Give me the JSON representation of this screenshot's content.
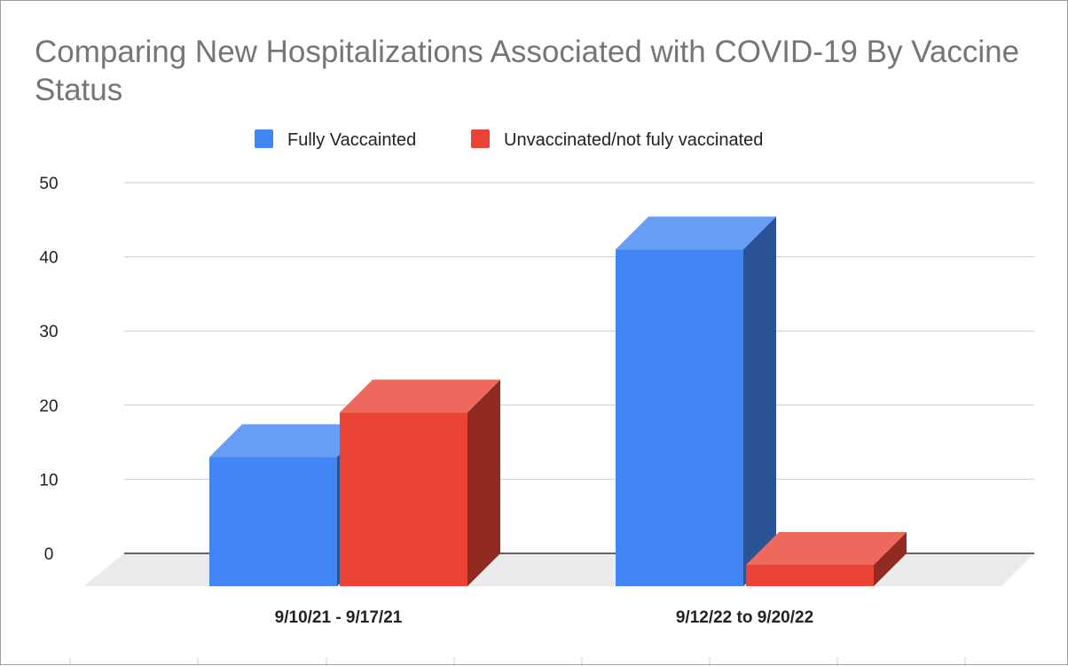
{
  "chart_data": {
    "type": "bar",
    "style": "3d",
    "title": "Comparing New Hospitalizations Associated with COVID-19 By Vaccine Status",
    "categories": [
      "9/10/21 - 9/17/21",
      "9/12/22 to 9/20/22"
    ],
    "series": [
      {
        "name": "Fully Vaccainted",
        "color": "#4285f4",
        "values": [
          13,
          41
        ]
      },
      {
        "name": "Unvaccinated/not fuly vaccinated",
        "color": "#ea4335",
        "values": [
          19,
          -1
        ]
      }
    ],
    "yticks": [
      0,
      10,
      20,
      30,
      40,
      50
    ],
    "ylim": [
      0,
      50
    ],
    "grid": true,
    "legend_position": "top"
  }
}
